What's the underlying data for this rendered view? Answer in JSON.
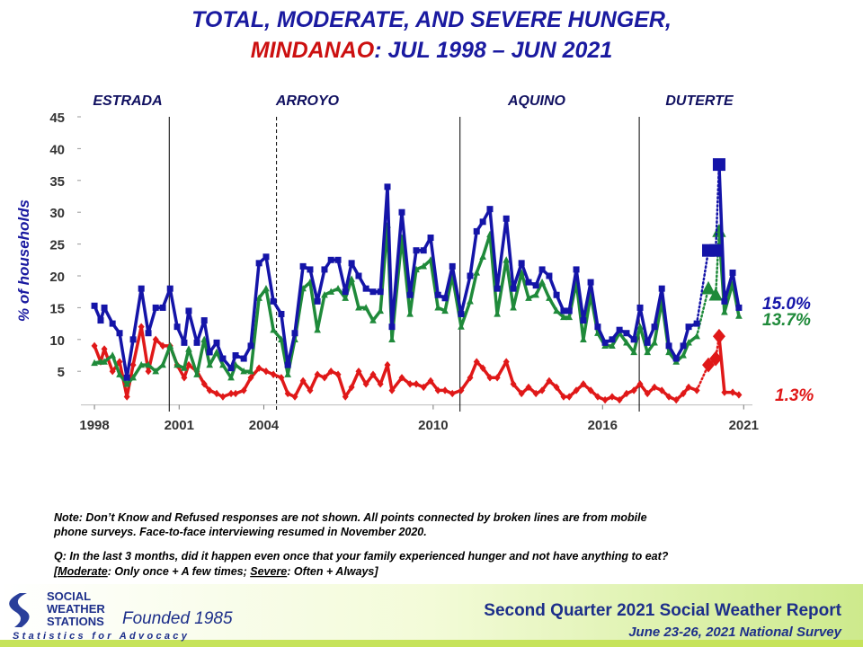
{
  "chart_data": {
    "type": "line",
    "title": "TOTAL, MODERATE, AND SEVERE HUNGER,",
    "title_region": "MINDANAO",
    "title_period": ":  JUL 1998 – JUN 2021",
    "y_label": "% of households",
    "eras": [
      "ESTRADA",
      "ARROYO",
      "AQUINO",
      "DUTERTE"
    ],
    "term_lines": [
      2000.65,
      2004.45,
      2010.95,
      2017.3
    ],
    "term_line_dashed": [
      false,
      true,
      false,
      false
    ],
    "xlim": [
      1997.52,
      2021.31
    ],
    "xticks": [
      1998,
      2001,
      2004,
      2010,
      2016,
      2021
    ],
    "ylim": [
      0,
      45
    ],
    "yticks": [
      5,
      10,
      15,
      20,
      25,
      30,
      35,
      40,
      45
    ],
    "mobile_survey_points": [
      86,
      87,
      88
    ],
    "x": [
      1998.0,
      1998.22,
      1998.35,
      1998.64,
      1998.89,
      1999.15,
      1999.37,
      1999.66,
      1999.91,
      2000.17,
      2000.42,
      2000.68,
      2000.93,
      2001.18,
      2001.34,
      2001.63,
      2001.89,
      2002.08,
      2002.33,
      2002.55,
      2002.84,
      2003.0,
      2003.29,
      2003.54,
      2003.83,
      2004.08,
      2004.34,
      2004.62,
      2004.85,
      2005.1,
      2005.39,
      2005.64,
      2005.9,
      2006.15,
      2006.38,
      2006.63,
      2006.89,
      2007.11,
      2007.36,
      2007.62,
      2007.87,
      2008.13,
      2008.38,
      2008.54,
      2008.89,
      2009.18,
      2009.4,
      2009.66,
      2009.91,
      2010.17,
      2010.42,
      2010.68,
      2010.99,
      2011.31,
      2011.54,
      2011.76,
      2012.01,
      2012.27,
      2012.59,
      2012.84,
      2013.13,
      2013.38,
      2013.64,
      2013.86,
      2014.11,
      2014.37,
      2014.62,
      2014.82,
      2015.07,
      2015.32,
      2015.58,
      2015.83,
      2016.09,
      2016.34,
      2016.6,
      2016.85,
      2017.11,
      2017.33,
      2017.59,
      2017.84,
      2018.1,
      2018.35,
      2018.61,
      2018.86,
      2019.05,
      2019.34,
      2019.75,
      2020.01,
      2020.13,
      2020.32,
      2020.61,
      2020.83
    ],
    "series": [
      {
        "color": "#1414a8",
        "end_label": "15.0%",
        "values": [
          15.3,
          13,
          15,
          12.5,
          11,
          4,
          10,
          18,
          11,
          15,
          15,
          18,
          12,
          9.5,
          14.5,
          9.5,
          13,
          8,
          9.5,
          7,
          5.5,
          7.5,
          7,
          9,
          22,
          23,
          16,
          14,
          6,
          11,
          21.5,
          21,
          16,
          21,
          22.5,
          22.5,
          17.5,
          22,
          20,
          18,
          17.5,
          17.5,
          34,
          12,
          30,
          17,
          24,
          24,
          26,
          17,
          16.5,
          21.5,
          14,
          20,
          27,
          28.5,
          30.5,
          18,
          29,
          18,
          22,
          19,
          18.5,
          21,
          20,
          17,
          14.5,
          14.5,
          21,
          13,
          19,
          12,
          9.5,
          10,
          11.5,
          11,
          10,
          15,
          9.5,
          12,
          18,
          9,
          7,
          9,
          12,
          12.5,
          24,
          24,
          37.5,
          16,
          20.5,
          15.0
        ]
      },
      {
        "color": "#1f8a3a",
        "end_label": "13.7%",
        "values": [
          6.3,
          6.5,
          6.5,
          7.5,
          4.5,
          3,
          4,
          6,
          6,
          5,
          6,
          9,
          6,
          5.5,
          8.5,
          4.5,
          10,
          6,
          8,
          6,
          4,
          6,
          5,
          5,
          16.5,
          18,
          11.5,
          10,
          4.5,
          10,
          18,
          19,
          11.5,
          17,
          17.5,
          18,
          16.5,
          19.5,
          15,
          15,
          13,
          14.5,
          28,
          10,
          26,
          14,
          21,
          21.5,
          22.5,
          15,
          14.5,
          20,
          12,
          16,
          20.5,
          23,
          26.5,
          14,
          22.5,
          15,
          20.5,
          16.5,
          17,
          19,
          16.5,
          14.5,
          13.5,
          13.5,
          19,
          10,
          17,
          11,
          9,
          9,
          11,
          9.5,
          8,
          12,
          8,
          9.5,
          16,
          8,
          6.5,
          7.5,
          9.5,
          10.5,
          18,
          17,
          27,
          14.3,
          18.8,
          13.7
        ]
      },
      {
        "color": "#e01818",
        "end_label": "1.3%",
        "values": [
          9,
          6.5,
          8.5,
          5,
          6.5,
          1,
          6,
          12,
          5,
          10,
          9,
          9,
          6,
          4,
          6,
          5,
          3,
          2,
          1.5,
          1,
          1.5,
          1.5,
          2,
          4,
          5.5,
          5,
          4.5,
          4,
          1.5,
          1,
          3.5,
          2,
          4.5,
          4,
          5,
          4.5,
          1,
          2.5,
          5,
          3,
          4.5,
          3,
          6,
          2,
          4,
          3,
          3,
          2.5,
          3.5,
          2,
          2,
          1.5,
          2,
          4,
          6.5,
          5.5,
          4,
          4,
          6.5,
          3,
          1.5,
          2.5,
          1.5,
          2,
          3.5,
          2.5,
          1,
          1,
          2,
          3,
          2,
          1,
          0.5,
          1,
          0.5,
          1.5,
          2,
          3,
          1.5,
          2.5,
          2,
          1,
          0.5,
          1.5,
          2.5,
          2,
          6,
          7,
          10.5,
          1.7,
          1.7,
          1.3
        ]
      }
    ]
  },
  "notes": [
    "Note: Don’t Know and Refused responses are not shown. All points connected by broken lines are from mobile",
    "phone surveys. Face-to-face interviewing resumed in November 2020."
  ],
  "question": {
    "text": "Q: In the last 3 months, did it happen even once that your family experienced hunger and not have anything to eat?",
    "open": "[",
    "moderate": "Moderate",
    "moderate_def": ": Only once + A few times; ",
    "severe": "Severe",
    "severe_def": ": Often + Always]"
  },
  "footer": {
    "org_1": "SOCIAL",
    "org_2": "WEATHER",
    "org_3": "STATIONS",
    "founded": "Founded 1985",
    "motto": "Statistics for Advocacy",
    "report": "Second Quarter 2021 Social Weather Report",
    "survey": "June 23-26, 2021 National Survey"
  }
}
